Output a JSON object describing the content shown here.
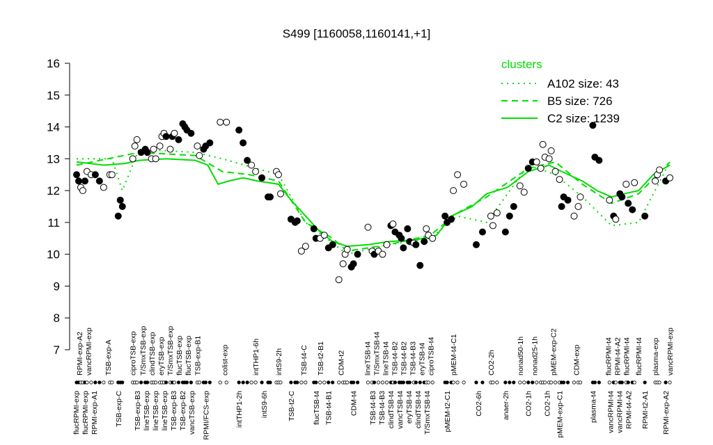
{
  "chart_data": {
    "type": "scatter",
    "title": "S499 [1160058,1160141,+1]",
    "xlabel": "",
    "ylabel": "",
    "ylim": [
      7,
      16
    ],
    "xlim": [
      0,
      288
    ],
    "yticks": [
      7,
      8,
      9,
      10,
      11,
      12,
      13,
      14,
      15,
      16
    ],
    "grid": false,
    "legend": {
      "title": "clusters",
      "placement": "top-right",
      "entries": [
        {
          "label": "A102 size: 43",
          "style": "dotted"
        },
        {
          "label": "B5 size: 726",
          "style": "dashed"
        },
        {
          "label": "C2 size: 1239",
          "style": "solid"
        }
      ]
    },
    "colors": {
      "clusters": "#00dd00",
      "points": "#000000"
    },
    "points": [
      [
        1,
        12.5,
        1
      ],
      [
        2,
        12.3,
        1
      ],
      [
        3,
        12.1,
        0
      ],
      [
        4,
        12.0,
        0
      ],
      [
        5,
        12.3,
        1
      ],
      [
        6,
        12.6,
        0
      ],
      [
        8,
        12.5,
        0
      ],
      [
        10,
        12.5,
        1
      ],
      [
        12,
        12.3,
        1
      ],
      [
        14,
        12.1,
        0
      ],
      [
        17,
        12.5,
        0
      ],
      [
        18,
        12.5,
        0
      ],
      [
        21,
        11.2,
        1
      ],
      [
        22,
        11.7,
        1
      ],
      [
        23,
        11.5,
        1
      ],
      [
        28,
        13.0,
        0
      ],
      [
        29,
        13.4,
        0
      ],
      [
        30,
        13.6,
        0
      ],
      [
        32,
        13.2,
        1
      ],
      [
        34,
        13.3,
        1
      ],
      [
        35,
        13.2,
        1
      ],
      [
        37,
        13.0,
        0
      ],
      [
        38,
        13.3,
        0
      ],
      [
        39,
        13.0,
        0
      ],
      [
        41,
        13.4,
        0
      ],
      [
        42,
        13.7,
        0
      ],
      [
        43,
        13.8,
        0
      ],
      [
        44,
        13.7,
        1
      ],
      [
        46,
        13.3,
        0
      ],
      [
        47,
        13.7,
        1
      ],
      [
        48,
        13.8,
        0
      ],
      [
        50,
        13.6,
        1
      ],
      [
        52,
        14.1,
        1
      ],
      [
        53,
        14.0,
        1
      ],
      [
        54,
        13.9,
        1
      ],
      [
        56,
        13.8,
        1
      ],
      [
        59,
        13.4,
        0
      ],
      [
        60,
        13.1,
        0
      ],
      [
        62,
        13.3,
        1
      ],
      [
        63,
        13.4,
        1
      ],
      [
        65,
        13.5,
        1
      ],
      [
        70,
        14.15,
        0
      ],
      [
        73,
        14.15,
        0
      ],
      [
        79,
        13.9,
        1
      ],
      [
        81,
        13.5,
        1
      ],
      [
        83,
        12.95,
        1
      ],
      [
        85,
        12.8,
        0
      ],
      [
        87,
        12.6,
        0
      ],
      [
        90,
        12.4,
        1
      ],
      [
        93,
        11.8,
        1
      ],
      [
        94,
        11.8,
        1
      ],
      [
        97,
        12.6,
        0
      ],
      [
        98,
        12.5,
        0
      ],
      [
        99,
        11.9,
        0
      ],
      [
        104,
        11.1,
        1
      ],
      [
        106,
        11.0,
        1
      ],
      [
        107,
        11.05,
        1
      ],
      [
        109,
        10.1,
        0
      ],
      [
        111,
        10.25,
        0
      ],
      [
        115,
        10.8,
        1
      ],
      [
        116,
        10.5,
        1
      ],
      [
        118,
        10.5,
        0
      ],
      [
        120,
        10.6,
        0
      ],
      [
        122,
        10.2,
        1
      ],
      [
        124,
        10.3,
        1
      ],
      [
        127,
        9.2,
        0
      ],
      [
        129,
        9.7,
        0
      ],
      [
        130,
        10.0,
        0
      ],
      [
        131,
        10.15,
        0
      ],
      [
        133,
        9.6,
        1
      ],
      [
        134,
        9.7,
        1
      ],
      [
        136,
        10.0,
        1
      ],
      [
        141,
        10.85,
        0
      ],
      [
        143,
        10.1,
        0
      ],
      [
        144,
        10.0,
        1
      ],
      [
        146,
        10.1,
        0
      ],
      [
        148,
        10.0,
        0
      ],
      [
        150,
        10.3,
        0
      ],
      [
        152,
        10.9,
        1
      ],
      [
        153,
        10.95,
        0
      ],
      [
        154,
        10.7,
        1
      ],
      [
        156,
        10.6,
        1
      ],
      [
        157,
        10.5,
        1
      ],
      [
        158,
        10.2,
        1
      ],
      [
        160,
        10.8,
        1
      ],
      [
        161,
        10.4,
        1
      ],
      [
        163,
        10.35,
        0
      ],
      [
        164,
        10.3,
        1
      ],
      [
        166,
        9.65,
        1
      ],
      [
        168,
        10.4,
        1
      ],
      [
        169,
        10.8,
        0
      ],
      [
        170,
        10.6,
        0
      ],
      [
        172,
        10.5,
        0
      ],
      [
        178,
        11.2,
        1
      ],
      [
        179,
        11.0,
        1
      ],
      [
        181,
        11.1,
        1
      ],
      [
        182,
        12.0,
        0
      ],
      [
        184,
        12.5,
        0
      ],
      [
        187,
        12.2,
        0
      ],
      [
        193,
        10.3,
        1
      ],
      [
        196,
        10.7,
        1
      ],
      [
        200,
        11.2,
        0
      ],
      [
        201,
        10.9,
        0
      ],
      [
        203,
        11.3,
        0
      ],
      [
        207,
        10.7,
        1
      ],
      [
        209,
        11.2,
        1
      ],
      [
        211,
        11.5,
        1
      ],
      [
        214,
        12.15,
        0
      ],
      [
        216,
        11.95,
        0
      ],
      [
        218,
        12.7,
        1
      ],
      [
        220,
        12.9,
        1
      ],
      [
        222,
        12.9,
        0
      ],
      [
        224,
        12.7,
        0
      ],
      [
        225,
        13.45,
        0
      ],
      [
        226,
        13.05,
        0
      ],
      [
        228,
        13.0,
        0
      ],
      [
        229,
        13.25,
        0
      ],
      [
        231,
        12.6,
        0
      ],
      [
        233,
        12.35,
        0
      ],
      [
        234,
        11.5,
        1
      ],
      [
        235,
        11.8,
        1
      ],
      [
        237,
        11.7,
        1
      ],
      [
        240,
        11.2,
        0
      ],
      [
        242,
        11.5,
        0
      ],
      [
        243,
        11.8,
        0
      ],
      [
        249,
        14.05,
        1
      ],
      [
        250,
        13.05,
        1
      ],
      [
        252,
        12.95,
        1
      ],
      [
        257,
        11.7,
        0
      ],
      [
        259,
        11.2,
        1
      ],
      [
        260,
        11.1,
        0
      ],
      [
        262,
        11.9,
        1
      ],
      [
        263,
        11.8,
        1
      ],
      [
        265,
        12.2,
        0
      ],
      [
        266,
        11.6,
        1
      ],
      [
        268,
        11.4,
        1
      ],
      [
        269,
        12.25,
        0
      ],
      [
        274,
        11.2,
        1
      ],
      [
        279,
        12.3,
        0
      ],
      [
        280,
        12.5,
        0
      ],
      [
        281,
        12.65,
        0
      ],
      [
        284,
        12.3,
        1
      ],
      [
        286,
        12.4,
        0
      ]
    ],
    "series": [
      {
        "name": "A102 size: 43",
        "style": "dotted",
        "points": [
          [
            1,
            13.0
          ],
          [
            18,
            13.0
          ],
          [
            23,
            12.0
          ],
          [
            31,
            13.3
          ],
          [
            58,
            13.2
          ],
          [
            71,
            13.0
          ],
          [
            98,
            12.5
          ],
          [
            111,
            11.0
          ],
          [
            131,
            10.0
          ],
          [
            151,
            10.3
          ],
          [
            171,
            10.5
          ],
          [
            184,
            11.2
          ],
          [
            198,
            11.0
          ],
          [
            218,
            12.8
          ],
          [
            231,
            12.5
          ],
          [
            244,
            11.8
          ],
          [
            258,
            10.9
          ],
          [
            271,
            11.0
          ],
          [
            286,
            12.9
          ]
        ]
      },
      {
        "name": "B5 size: 726",
        "style": "dashed",
        "points": [
          [
            1,
            12.8
          ],
          [
            31,
            13.2
          ],
          [
            58,
            13.1
          ],
          [
            71,
            12.6
          ],
          [
            84,
            12.5
          ],
          [
            98,
            12.3
          ],
          [
            111,
            11.0
          ],
          [
            124,
            10.5
          ],
          [
            131,
            10.1
          ],
          [
            151,
            10.3
          ],
          [
            171,
            10.6
          ],
          [
            184,
            11.3
          ],
          [
            198,
            11.8
          ],
          [
            218,
            12.7
          ],
          [
            231,
            12.9
          ],
          [
            244,
            12.2
          ],
          [
            258,
            11.6
          ],
          [
            271,
            11.9
          ],
          [
            286,
            12.9
          ]
        ]
      },
      {
        "name": "C2 size: 1239",
        "style": "solid",
        "points": [
          [
            1,
            12.9
          ],
          [
            14,
            12.8
          ],
          [
            24,
            12.85
          ],
          [
            31,
            12.95
          ],
          [
            44,
            13.0
          ],
          [
            58,
            12.95
          ],
          [
            64,
            12.8
          ],
          [
            69,
            12.2
          ],
          [
            74,
            12.3
          ],
          [
            81,
            12.4
          ],
          [
            88,
            12.3
          ],
          [
            98,
            12.2
          ],
          [
            104,
            11.7
          ],
          [
            111,
            11.2
          ],
          [
            118,
            10.7
          ],
          [
            124,
            10.4
          ],
          [
            131,
            10.25
          ],
          [
            141,
            10.3
          ],
          [
            151,
            10.4
          ],
          [
            164,
            10.45
          ],
          [
            174,
            10.6
          ],
          [
            181,
            11.2
          ],
          [
            191,
            11.5
          ],
          [
            198,
            11.9
          ],
          [
            208,
            12.1
          ],
          [
            218,
            12.6
          ],
          [
            228,
            12.8
          ],
          [
            234,
            12.6
          ],
          [
            244,
            12.3
          ],
          [
            251,
            12.0
          ],
          [
            258,
            11.8
          ],
          [
            264,
            11.9
          ],
          [
            271,
            12.0
          ],
          [
            278,
            12.5
          ],
          [
            286,
            12.8
          ]
        ]
      }
    ],
    "top_labels": [
      {
        "x": 3,
        "text": "RPMI-exp-A2"
      },
      {
        "x": 6,
        "text": "vancRPMI-exp"
      },
      {
        "x": 16,
        "text": "TSB-exp-A"
      },
      {
        "x": 28,
        "text": "ciproTSB-exp"
      },
      {
        "x": 34,
        "text": "T/SmxTSB-exp"
      },
      {
        "x": 38,
        "text": "clindTSB-exp"
      },
      {
        "x": 42,
        "text": "eryTSB-exp"
      },
      {
        "x": 46,
        "text": "T/SmxTSB-exp"
      },
      {
        "x": 49,
        "text": "flucTSB-exp"
      },
      {
        "x": 53,
        "text": "flucTSB-exp"
      },
      {
        "x": 59,
        "text": "TSB-exp-B1"
      },
      {
        "x": 72,
        "text": "colist-exp"
      },
      {
        "x": 87,
        "text": "intTHP1-6h"
      },
      {
        "x": 98,
        "text": "intS9-2h"
      },
      {
        "x": 110,
        "text": "TSB-t4-C"
      },
      {
        "x": 118,
        "text": "TSB-t2-B1"
      },
      {
        "x": 128,
        "text": "CDM-t2"
      },
      {
        "x": 141,
        "text": "lineTSB-t4"
      },
      {
        "x": 146,
        "text": "T/SmxTSB-t4"
      },
      {
        "x": 149,
        "text": "lineTSB-t4"
      },
      {
        "x": 153,
        "text": "TSB-t4-B2"
      },
      {
        "x": 158,
        "text": "TSB-t4-B2"
      },
      {
        "x": 163,
        "text": "TSB-t4-B3"
      },
      {
        "x": 166,
        "text": "eryTSB-t4"
      },
      {
        "x": 171,
        "text": "ciproTSB-t4"
      },
      {
        "x": 182,
        "text": "pMEM-t4-C1"
      },
      {
        "x": 200,
        "text": "CO2-2h"
      },
      {
        "x": 214,
        "text": "nonad50-1h"
      },
      {
        "x": 221,
        "text": "nonad25-1h"
      },
      {
        "x": 230,
        "text": "pMEM-exp-C2"
      },
      {
        "x": 241,
        "text": "CDM-exp"
      },
      {
        "x": 257,
        "text": "flucRPMI-t4"
      },
      {
        "x": 260,
        "text": "RPMI-t4-A2"
      },
      {
        "x": 265,
        "text": "flucRPMI-t4"
      },
      {
        "x": 271,
        "text": "flucRPMI-t4"
      },
      {
        "x": 279,
        "text": "plasma-exp"
      },
      {
        "x": 286,
        "text": "vancRPMI-exp"
      }
    ],
    "bottom_labels": [
      {
        "x": 1,
        "text": "flucRPMI-exp"
      },
      {
        "x": 5,
        "text": "flucRPMI-exp"
      },
      {
        "x": 9,
        "text": "RPMI-exp-A1"
      },
      {
        "x": 21,
        "text": "TSB-exp-C"
      },
      {
        "x": 32,
        "text": "TSB-exp-B3"
      },
      {
        "x": 36,
        "text": "lineTSB-exp"
      },
      {
        "x": 40,
        "text": "lineTSB-exp"
      },
      {
        "x": 44,
        "text": "lineTSB-exp"
      },
      {
        "x": 46,
        "text": "TSB-exp-B3"
      },
      {
        "x": 50,
        "text": "TSB-exp-B2"
      },
      {
        "x": 54,
        "text": "vancTSB-exp"
      },
      {
        "x": 63,
        "text": "RPMI/FCS-exp"
      },
      {
        "x": 79,
        "text": "intTHP1-2h"
      },
      {
        "x": 91,
        "text": "intS9-6h"
      },
      {
        "x": 104,
        "text": "TSB-t2-C"
      },
      {
        "x": 116,
        "text": "flucTSB-t4"
      },
      {
        "x": 122,
        "text": "TSB-t4-B1"
      },
      {
        "x": 134,
        "text": "CDM-t4"
      },
      {
        "x": 144,
        "text": "TSB-t4-B3"
      },
      {
        "x": 149,
        "text": "TSB-t4-B3"
      },
      {
        "x": 152,
        "text": "clindTSB-t4"
      },
      {
        "x": 156,
        "text": "vancTSB-t4"
      },
      {
        "x": 160,
        "text": "eryTSB-t4"
      },
      {
        "x": 164,
        "text": "clindTSB-t4"
      },
      {
        "x": 169,
        "text": "T/SmxTSB-t4"
      },
      {
        "x": 179,
        "text": "pMEM-t2-C1"
      },
      {
        "x": 194,
        "text": "CO2-6h"
      },
      {
        "x": 207,
        "text": "anaer-2h"
      },
      {
        "x": 218,
        "text": "CO2-1h"
      },
      {
        "x": 227,
        "text": "CO2-1h"
      },
      {
        "x": 233,
        "text": "pMEM-exp-C1"
      },
      {
        "x": 249,
        "text": "plasma-t4"
      },
      {
        "x": 259,
        "text": "vancRPMI-t4"
      },
      {
        "x": 261,
        "text": "vancRPMI-t4"
      },
      {
        "x": 265,
        "text": "RPMI-t4-A2"
      },
      {
        "x": 274,
        "text": "RPMI-t2-A1"
      },
      {
        "x": 284,
        "text": "RPMI-exp-A2"
      }
    ]
  }
}
